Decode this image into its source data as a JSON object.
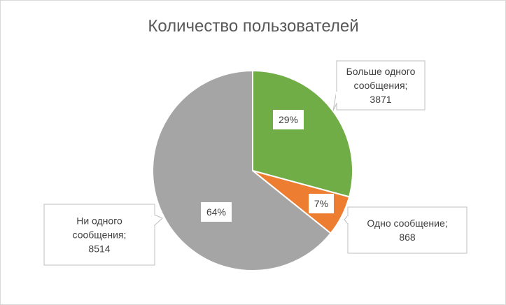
{
  "chart_data": {
    "type": "pie",
    "title": "Количество пользователей",
    "slices": [
      {
        "name": "Больше одного сообщения",
        "value": 3871,
        "percent_label": "29%",
        "callout_lines": [
          "Больше одного",
          "сообщения;",
          "3871"
        ],
        "color": "#70ad47"
      },
      {
        "name": "Одно сообщение",
        "value": 868,
        "percent_label": "7%",
        "callout_lines": [
          "Одно сообщение;",
          "868"
        ],
        "color": "#ed7d31"
      },
      {
        "name": "Ни одного сообщения",
        "value": 8514,
        "percent_label": "64%",
        "callout_lines": [
          "Ни одного",
          "сообщения;",
          "8514"
        ],
        "color": "#a5a5a5"
      }
    ],
    "start_angle_deg": 0,
    "direction": "clockwise",
    "legend": "none"
  }
}
